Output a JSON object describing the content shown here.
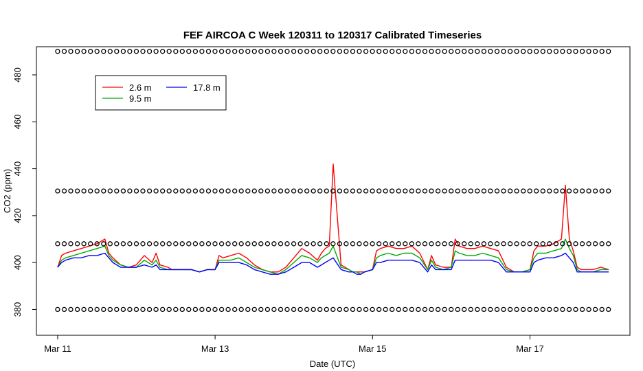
{
  "chart_data": {
    "type": "line",
    "title": "FEF AIRCOA C  Week 120311 to 120317  Calibrated Timeseries",
    "xlabel": "Date (UTC)",
    "ylabel": "CO2 (ppm)",
    "xlim": [
      -0.27,
      7.27
    ],
    "ylim": [
      369,
      492
    ],
    "x_ticks": [
      0,
      2,
      4,
      6
    ],
    "x_tick_labels": [
      "Mar 11",
      "Mar 13",
      "Mar 15",
      "Mar 17"
    ],
    "y_ticks": [
      380,
      400,
      420,
      440,
      460,
      480
    ],
    "y_tick_labels": [
      "380",
      "400",
      "420",
      "440",
      "460",
      "480"
    ],
    "x_unit": "days since Mar 11 00:00 UTC",
    "legend": {
      "position": "top-left",
      "entries": [
        "2.6 m",
        "9.5 m",
        "17.8 m"
      ]
    },
    "series": [
      {
        "name": "2.6 m",
        "color": "#ff0000",
        "x": [
          0,
          0.05,
          0.1,
          0.2,
          0.3,
          0.4,
          0.5,
          0.6,
          0.65,
          0.7,
          0.8,
          0.9,
          1.0,
          1.1,
          1.2,
          1.25,
          1.3,
          1.4,
          1.45,
          1.5,
          1.6,
          1.7,
          1.8,
          1.9,
          2.0,
          2.05,
          2.1,
          2.2,
          2.3,
          2.4,
          2.5,
          2.6,
          2.7,
          2.8,
          2.9,
          3.0,
          3.1,
          3.2,
          3.3,
          3.35,
          3.4,
          3.45,
          3.5,
          3.6,
          3.7,
          3.75,
          3.8,
          3.85,
          3.9,
          4.0,
          4.05,
          4.1,
          4.2,
          4.3,
          4.4,
          4.5,
          4.6,
          4.7,
          4.75,
          4.8,
          4.9,
          5.0,
          5.05,
          5.1,
          5.2,
          5.3,
          5.4,
          5.5,
          5.6,
          5.7,
          5.8,
          5.9,
          6.0,
          6.05,
          6.1,
          6.2,
          6.3,
          6.4,
          6.45,
          6.5,
          6.55,
          6.6,
          6.65,
          6.7,
          6.8,
          6.9,
          7.0
        ],
        "y": [
          398,
          403,
          404,
          405,
          406,
          407,
          408,
          410,
          404,
          402,
          399,
          398,
          399,
          403,
          400,
          404,
          399,
          398,
          397,
          397,
          397,
          397,
          396,
          397,
          397,
          403,
          402,
          403,
          404,
          402,
          399,
          397,
          396,
          396,
          398,
          402,
          406,
          404,
          401,
          404,
          406,
          407,
          442,
          399,
          397,
          396,
          396,
          396,
          396,
          397,
          405,
          406,
          407,
          406,
          406,
          407,
          404,
          397,
          403,
          399,
          398,
          398,
          410,
          407,
          406,
          406,
          407,
          406,
          405,
          398,
          396,
          396,
          397,
          405,
          407,
          407,
          408,
          410,
          433,
          410,
          405,
          398,
          397,
          397,
          397,
          398,
          397
        ]
      },
      {
        "name": "9.5 m",
        "color": "#00aa00",
        "x": [
          0,
          0.05,
          0.1,
          0.2,
          0.3,
          0.4,
          0.5,
          0.6,
          0.65,
          0.7,
          0.8,
          0.9,
          1.0,
          1.1,
          1.2,
          1.25,
          1.3,
          1.4,
          1.45,
          1.5,
          1.6,
          1.7,
          1.8,
          1.9,
          2.0,
          2.05,
          2.1,
          2.2,
          2.3,
          2.4,
          2.5,
          2.6,
          2.7,
          2.8,
          2.9,
          3.0,
          3.1,
          3.2,
          3.3,
          3.35,
          3.4,
          3.45,
          3.5,
          3.6,
          3.7,
          3.75,
          3.8,
          3.85,
          3.9,
          4.0,
          4.05,
          4.1,
          4.2,
          4.3,
          4.4,
          4.5,
          4.6,
          4.7,
          4.75,
          4.8,
          4.9,
          5.0,
          5.05,
          5.1,
          5.2,
          5.3,
          5.4,
          5.5,
          5.6,
          5.7,
          5.8,
          5.9,
          6.0,
          6.05,
          6.1,
          6.2,
          6.3,
          6.4,
          6.45,
          6.5,
          6.55,
          6.6,
          6.65,
          6.7,
          6.8,
          6.9,
          7.0
        ],
        "y": [
          398,
          401,
          402,
          403,
          404,
          405,
          406,
          407,
          403,
          401,
          399,
          398,
          398,
          401,
          399,
          401,
          398,
          397,
          397,
          397,
          397,
          397,
          396,
          397,
          397,
          401,
          401,
          401,
          402,
          400,
          398,
          397,
          396,
          395,
          397,
          400,
          403,
          402,
          400,
          402,
          403,
          404,
          407,
          398,
          397,
          396,
          396,
          395,
          396,
          397,
          402,
          403,
          404,
          403,
          404,
          404,
          402,
          397,
          401,
          398,
          397,
          398,
          405,
          404,
          403,
          403,
          404,
          403,
          402,
          397,
          396,
          396,
          397,
          402,
          404,
          404,
          405,
          406,
          410,
          406,
          403,
          397,
          396,
          396,
          396,
          397,
          397
        ]
      },
      {
        "name": "17.8 m",
        "color": "#0000ff",
        "x": [
          0,
          0.05,
          0.1,
          0.2,
          0.3,
          0.4,
          0.5,
          0.6,
          0.65,
          0.7,
          0.8,
          0.9,
          1.0,
          1.1,
          1.2,
          1.25,
          1.3,
          1.4,
          1.45,
          1.5,
          1.6,
          1.7,
          1.8,
          1.9,
          2.0,
          2.05,
          2.1,
          2.2,
          2.3,
          2.4,
          2.5,
          2.6,
          2.7,
          2.8,
          2.9,
          3.0,
          3.1,
          3.2,
          3.3,
          3.35,
          3.4,
          3.45,
          3.5,
          3.6,
          3.7,
          3.75,
          3.8,
          3.85,
          3.9,
          4.0,
          4.05,
          4.1,
          4.2,
          4.3,
          4.4,
          4.5,
          4.6,
          4.7,
          4.75,
          4.8,
          4.9,
          5.0,
          5.05,
          5.1,
          5.2,
          5.3,
          5.4,
          5.5,
          5.6,
          5.7,
          5.8,
          5.9,
          6.0,
          6.05,
          6.1,
          6.2,
          6.3,
          6.4,
          6.45,
          6.5,
          6.55,
          6.6,
          6.65,
          6.7,
          6.8,
          6.9,
          7.0
        ],
        "y": [
          398,
          400,
          401,
          402,
          402,
          403,
          403,
          404,
          402,
          400,
          398,
          398,
          398,
          399,
          398,
          399,
          397,
          397,
          397,
          397,
          397,
          397,
          396,
          397,
          397,
          400,
          400,
          400,
          400,
          399,
          397,
          396,
          395,
          395,
          396,
          398,
          400,
          400,
          398,
          399,
          400,
          401,
          402,
          397,
          396,
          396,
          395,
          395,
          396,
          397,
          400,
          400,
          401,
          401,
          401,
          401,
          400,
          396,
          399,
          397,
          397,
          397,
          401,
          401,
          401,
          401,
          401,
          401,
          400,
          396,
          396,
          396,
          396,
          400,
          401,
          402,
          402,
          403,
          404,
          402,
          400,
          396,
          396,
          396,
          396,
          396,
          396
        ]
      },
      {
        "name": "",
        "color": "#000000",
        "marker": "circle",
        "levels": [
          380,
          408,
          430.5,
          490
        ],
        "spacing": 0.0833,
        "x_range": [
          0,
          7
        ]
      }
    ]
  }
}
